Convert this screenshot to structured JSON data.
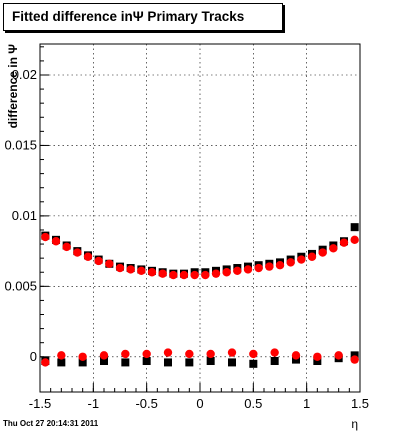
{
  "chart_data": {
    "type": "scatter",
    "title": "Fitted difference inΨ   Primary Tracks",
    "xlabel": "η",
    "ylabel": "difference in Ψ",
    "xlim": [
      -1.5,
      1.5
    ],
    "ylim": [
      -0.0025,
      0.0222
    ],
    "grid": true,
    "x_ticks": [
      "-1.5",
      "-1",
      "-0.5",
      "0",
      "0.5",
      "1",
      "1.5"
    ],
    "y_ticks": [
      "0",
      "0.005",
      "0.01",
      "0.015",
      "0.02"
    ],
    "timestamp": "Thu Oct 27 20:14:31 2011",
    "series": [
      {
        "marker_color": "#000000",
        "points": [
          {
            "x": -1.45,
            "y": 0.0086
          },
          {
            "x": -1.35,
            "y": 0.0083
          },
          {
            "x": -1.25,
            "y": 0.0079
          },
          {
            "x": -1.15,
            "y": 0.0075
          },
          {
            "x": -1.05,
            "y": 0.0072
          },
          {
            "x": -0.95,
            "y": 0.0069
          },
          {
            "x": -0.85,
            "y": 0.0066
          },
          {
            "x": -0.75,
            "y": 0.0064
          },
          {
            "x": -0.65,
            "y": 0.0063
          },
          {
            "x": -0.55,
            "y": 0.0062
          },
          {
            "x": -0.45,
            "y": 0.0061
          },
          {
            "x": -0.35,
            "y": 0.006
          },
          {
            "x": -0.25,
            "y": 0.0059
          },
          {
            "x": -0.15,
            "y": 0.0059
          },
          {
            "x": -0.05,
            "y": 0.006
          },
          {
            "x": 0.05,
            "y": 0.006
          },
          {
            "x": 0.15,
            "y": 0.0061
          },
          {
            "x": 0.25,
            "y": 0.0062
          },
          {
            "x": 0.35,
            "y": 0.0063
          },
          {
            "x": 0.45,
            "y": 0.0064
          },
          {
            "x": 0.55,
            "y": 0.0065
          },
          {
            "x": 0.65,
            "y": 0.0066
          },
          {
            "x": 0.75,
            "y": 0.0067
          },
          {
            "x": 0.85,
            "y": 0.0069
          },
          {
            "x": 0.95,
            "y": 0.0071
          },
          {
            "x": 1.05,
            "y": 0.0073
          },
          {
            "x": 1.15,
            "y": 0.0076
          },
          {
            "x": 1.25,
            "y": 0.0079
          },
          {
            "x": 1.35,
            "y": 0.0082
          },
          {
            "x": 1.45,
            "y": 0.0092
          },
          {
            "x": -1.45,
            "y": -0.0003
          },
          {
            "x": -1.3,
            "y": -0.0004
          },
          {
            "x": -1.1,
            "y": -0.0004
          },
          {
            "x": -0.9,
            "y": -0.0003
          },
          {
            "x": -0.7,
            "y": -0.0004
          },
          {
            "x": -0.5,
            "y": -0.0003
          },
          {
            "x": -0.3,
            "y": -0.0004
          },
          {
            "x": -0.1,
            "y": -0.0004
          },
          {
            "x": 0.1,
            "y": -0.0003
          },
          {
            "x": 0.3,
            "y": -0.0004
          },
          {
            "x": 0.5,
            "y": -0.0005
          },
          {
            "x": 0.7,
            "y": -0.0003
          },
          {
            "x": 0.9,
            "y": -0.0002
          },
          {
            "x": 1.1,
            "y": -0.0003
          },
          {
            "x": 1.3,
            "y": -0.0001
          },
          {
            "x": 1.45,
            "y": 0.0001
          }
        ]
      },
      {
        "marker_color": "#ff0000",
        "points": [
          {
            "x": -1.45,
            "y": 0.0085
          },
          {
            "x": -1.35,
            "y": 0.0082
          },
          {
            "x": -1.25,
            "y": 0.0078
          },
          {
            "x": -1.15,
            "y": 0.0074
          },
          {
            "x": -1.05,
            "y": 0.0071
          },
          {
            "x": -0.95,
            "y": 0.0068
          },
          {
            "x": -0.85,
            "y": 0.0066
          },
          {
            "x": -0.75,
            "y": 0.0063
          },
          {
            "x": -0.65,
            "y": 0.0062
          },
          {
            "x": -0.55,
            "y": 0.0061
          },
          {
            "x": -0.45,
            "y": 0.006
          },
          {
            "x": -0.35,
            "y": 0.0059
          },
          {
            "x": -0.25,
            "y": 0.0058
          },
          {
            "x": -0.15,
            "y": 0.0058
          },
          {
            "x": -0.05,
            "y": 0.0058
          },
          {
            "x": 0.05,
            "y": 0.0058
          },
          {
            "x": 0.15,
            "y": 0.0059
          },
          {
            "x": 0.25,
            "y": 0.006
          },
          {
            "x": 0.35,
            "y": 0.0061
          },
          {
            "x": 0.45,
            "y": 0.0062
          },
          {
            "x": 0.55,
            "y": 0.0063
          },
          {
            "x": 0.65,
            "y": 0.0064
          },
          {
            "x": 0.75,
            "y": 0.0065
          },
          {
            "x": 0.85,
            "y": 0.0067
          },
          {
            "x": 0.95,
            "y": 0.0069
          },
          {
            "x": 1.05,
            "y": 0.0071
          },
          {
            "x": 1.15,
            "y": 0.0074
          },
          {
            "x": 1.25,
            "y": 0.0077
          },
          {
            "x": 1.35,
            "y": 0.0081
          },
          {
            "x": 1.45,
            "y": 0.0083
          },
          {
            "x": -1.45,
            "y": -0.0004
          },
          {
            "x": -1.3,
            "y": 0.0001
          },
          {
            "x": -1.1,
            "y": 0.0
          },
          {
            "x": -0.9,
            "y": 0.0001
          },
          {
            "x": -0.7,
            "y": 0.0002
          },
          {
            "x": -0.5,
            "y": 0.0002
          },
          {
            "x": -0.3,
            "y": 0.0003
          },
          {
            "x": -0.1,
            "y": 0.0002
          },
          {
            "x": 0.1,
            "y": 0.0002
          },
          {
            "x": 0.3,
            "y": 0.0003
          },
          {
            "x": 0.5,
            "y": 0.0002
          },
          {
            "x": 0.7,
            "y": 0.0003
          },
          {
            "x": 0.9,
            "y": 0.0001
          },
          {
            "x": 1.1,
            "y": 0.0
          },
          {
            "x": 1.3,
            "y": 0.0001
          },
          {
            "x": 1.45,
            "y": -0.0002
          }
        ]
      }
    ]
  }
}
